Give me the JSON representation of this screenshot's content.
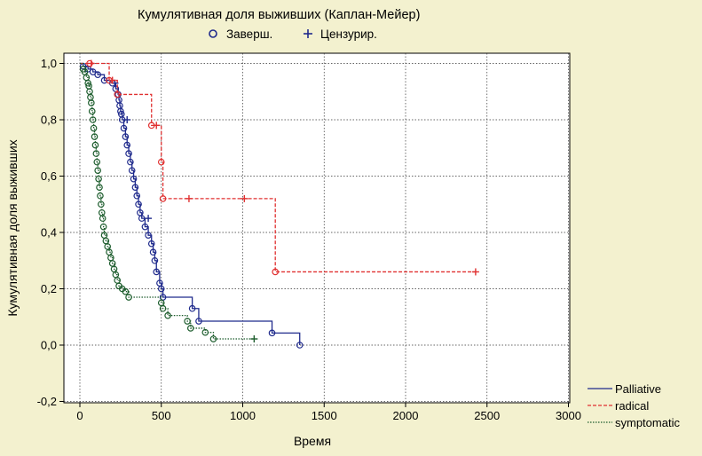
{
  "chart_data": {
    "type": "line",
    "title": "Кумулятивная доля выживших (Каплан-Мейер)",
    "xlabel": "Время",
    "ylabel": "Кумулятивная доля выживших",
    "xlim": [
      -200,
      3000
    ],
    "ylim": [
      -0.2,
      1.05
    ],
    "x_ticks": [
      0,
      500,
      1000,
      1500,
      2000,
      2500,
      3000
    ],
    "x_tick_labels": [
      "0",
      "500",
      "1000",
      "1500",
      "2000",
      "2500",
      "3000"
    ],
    "y_ticks": [
      -0.2,
      0.0,
      0.2,
      0.4,
      0.6,
      0.8,
      1.0
    ],
    "y_tick_labels": [
      "-0,2",
      "0,0",
      "0,2",
      "0,4",
      "0,6",
      "0,8",
      "1,0"
    ],
    "grid": true,
    "marker_legend": {
      "position": "top",
      "completed_label": "Заверш.",
      "censored_label": "Цензурир."
    },
    "legend": {
      "position": "bottom-right"
    },
    "series": [
      {
        "name": "Palliative",
        "color": "#1f2a8c",
        "dash": "solid",
        "x": [
          0,
          20,
          50,
          80,
          110,
          150,
          200,
          220,
          235,
          240,
          245,
          250,
          255,
          260,
          270,
          280,
          290,
          300,
          310,
          320,
          330,
          340,
          350,
          360,
          370,
          380,
          400,
          420,
          440,
          450,
          460,
          470,
          490,
          500,
          510,
          690,
          730,
          1180,
          1350
        ],
        "y": [
          1.0,
          0.99,
          0.98,
          0.97,
          0.96,
          0.94,
          0.93,
          0.91,
          0.89,
          0.87,
          0.85,
          0.83,
          0.82,
          0.8,
          0.77,
          0.74,
          0.71,
          0.68,
          0.65,
          0.62,
          0.59,
          0.56,
          0.53,
          0.5,
          0.47,
          0.45,
          0.42,
          0.39,
          0.36,
          0.33,
          0.3,
          0.26,
          0.22,
          0.2,
          0.17,
          0.13,
          0.085,
          0.043,
          0.0
        ],
        "censored": [
          [
            215,
            0.93
          ],
          [
            290,
            0.8
          ],
          [
            420,
            0.45
          ]
        ]
      },
      {
        "name": "radical",
        "color": "#e03030",
        "dash": "dashed",
        "x": [
          0,
          60,
          180,
          230,
          440,
          500,
          510,
          1200
        ],
        "y": [
          1.0,
          1.0,
          0.94,
          0.89,
          0.78,
          0.65,
          0.52,
          0.26
        ],
        "censored": [
          [
            70,
            1.0
          ],
          [
            200,
            0.94
          ],
          [
            470,
            0.78
          ],
          [
            670,
            0.52
          ],
          [
            1010,
            0.52
          ],
          [
            2430,
            0.26
          ]
        ],
        "end_x": 2430
      },
      {
        "name": "symptomatic",
        "color": "#1c5c2c",
        "dash": "dotted",
        "x": [
          0,
          20,
          30,
          40,
          50,
          55,
          60,
          65,
          70,
          75,
          80,
          85,
          90,
          95,
          100,
          105,
          110,
          115,
          120,
          125,
          130,
          135,
          140,
          145,
          150,
          160,
          170,
          180,
          190,
          200,
          210,
          220,
          230,
          240,
          260,
          280,
          300,
          500,
          510,
          540,
          660,
          680,
          770,
          820
        ],
        "y": [
          1.0,
          0.98,
          0.97,
          0.95,
          0.93,
          0.92,
          0.9,
          0.88,
          0.86,
          0.83,
          0.8,
          0.77,
          0.74,
          0.71,
          0.68,
          0.65,
          0.62,
          0.59,
          0.56,
          0.53,
          0.5,
          0.47,
          0.45,
          0.42,
          0.39,
          0.37,
          0.35,
          0.33,
          0.31,
          0.29,
          0.27,
          0.25,
          0.23,
          0.21,
          0.2,
          0.19,
          0.17,
          0.15,
          0.13,
          0.105,
          0.085,
          0.06,
          0.045,
          0.022
        ],
        "censored": [
          [
            1070,
            0.022
          ]
        ],
        "end_x": 1070
      }
    ]
  }
}
